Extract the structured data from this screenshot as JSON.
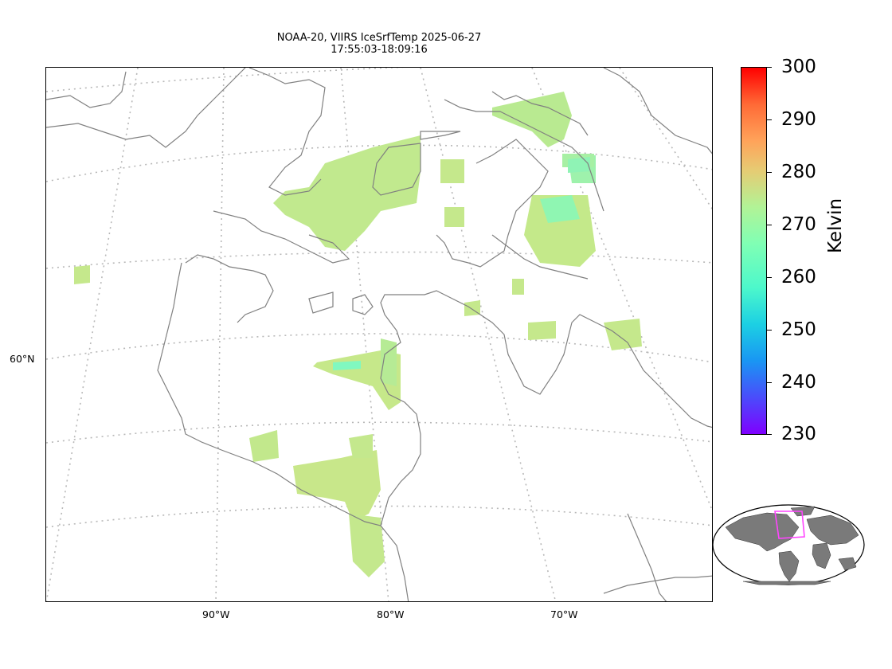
{
  "title": {
    "line1": "NOAA-20, VIIRS IceSrfTemp 2025-06-27",
    "line2": "17:55:03-18:09:16"
  },
  "axes": {
    "lat_labels": [
      "60°N"
    ],
    "lon_labels": [
      "90°W",
      "80°W",
      "70°W"
    ]
  },
  "colorbar": {
    "label": "Kelvin",
    "ticks": [
      "300",
      "290",
      "280",
      "270",
      "260",
      "250",
      "240",
      "230"
    ],
    "min": 230,
    "max": 300,
    "colormap": "rainbow"
  },
  "colors": {
    "coastline": "#808080",
    "graticule": "#b0b0b0",
    "data_dominant": "#c2e88c",
    "data_cold": "#80ffb4",
    "inset_land": "#7a7a7a",
    "inset_box": "#ff44ff"
  }
}
